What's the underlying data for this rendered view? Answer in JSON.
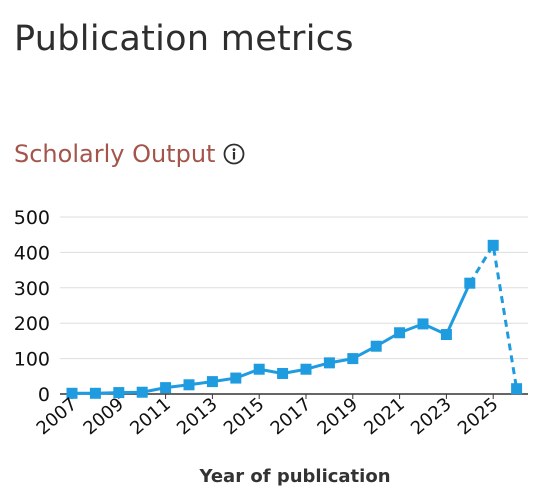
{
  "page": {
    "title": "Publication metrics"
  },
  "section": {
    "title": "Scholarly Output",
    "info_icon": "info-circle-icon"
  },
  "colors": {
    "series": "#1f9be0",
    "grid": "#dddddd",
    "axis": "#333333",
    "section_title": "#a4554b",
    "page_title": "#2e2e2e"
  },
  "chart_data": {
    "type": "line",
    "title": "",
    "xlabel": "Year of publication",
    "ylabel": "",
    "ylim": [
      0,
      500
    ],
    "yticks": [
      0,
      100,
      200,
      300,
      400,
      500
    ],
    "x": [
      2007,
      2008,
      2009,
      2010,
      2011,
      2012,
      2013,
      2014,
      2015,
      2016,
      2017,
      2018,
      2019,
      2020,
      2021,
      2022,
      2023,
      2024,
      2025,
      2026
    ],
    "xtick_labels": [
      "2007",
      "2009",
      "2011",
      "2013",
      "2015",
      "2017",
      "2019",
      "2021",
      "2023",
      "2025"
    ],
    "series": [
      {
        "values": [
          2,
          2,
          4,
          5,
          18,
          26,
          35,
          45,
          70,
          58,
          70,
          88,
          100,
          135,
          173,
          198,
          168,
          313,
          420,
          15
        ],
        "solid_until_index": 17,
        "marker": "square"
      }
    ],
    "grid": true,
    "legend": "none"
  }
}
